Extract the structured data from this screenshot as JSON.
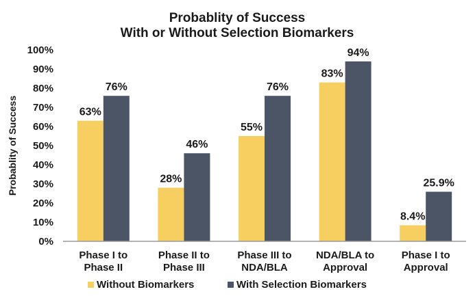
{
  "chart_data": {
    "type": "bar",
    "title_lines": [
      "Probablity of Success",
      "With or Without Selection Biomarkers"
    ],
    "xlabel": "",
    "ylabel": "Probablity of Success",
    "ylim": [
      0,
      100
    ],
    "yticks": [
      "0%",
      "10%",
      "20%",
      "30%",
      "40%",
      "50%",
      "60%",
      "70%",
      "80%",
      "90%",
      "100%"
    ],
    "categories": [
      [
        "Phase I to",
        "Phase II"
      ],
      [
        "Phase II to",
        "Phase III"
      ],
      [
        "Phase III to",
        "NDA/BLA"
      ],
      [
        "NDA/BLA to",
        "Approval"
      ],
      [
        "Phase I to",
        "Approval"
      ]
    ],
    "series": [
      {
        "name": "Without Biomarkers",
        "color": "#F7CE60",
        "values": [
          63,
          28,
          55,
          83,
          8.4
        ],
        "labels": [
          "63%",
          "28%",
          "55%",
          "83%",
          "8.4%"
        ]
      },
      {
        "name": "With Selection Biomarkers",
        "color": "#4B5566",
        "values": [
          76,
          46,
          76,
          94,
          25.9
        ],
        "labels": [
          "76%",
          "46%",
          "76%",
          "94%",
          "25.9%"
        ]
      }
    ],
    "grid": false,
    "legend_position": "bottom"
  }
}
